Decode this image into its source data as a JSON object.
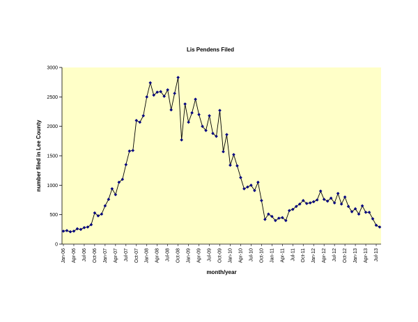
{
  "chart_data": {
    "type": "line",
    "title": "Lis Pendens Filed",
    "xlabel": "month/year",
    "ylabel": "number filed in Lee County",
    "ylim": [
      0,
      3000
    ],
    "yticks": [
      0,
      500,
      1000,
      1500,
      2000,
      2500,
      3000
    ],
    "grid": false,
    "legend": "none",
    "colors": {
      "plot_bg": "#ffffc8",
      "line": "#000000",
      "marker": "#000080"
    },
    "x_tick_labels": [
      "Jan-06",
      "Apr-06",
      "Jul-06",
      "Oct-06",
      "Jan-07",
      "Apr-07",
      "Jul-07",
      "Oct-07",
      "Jan-08",
      "Apr-08",
      "Jul-08",
      "Oct-08",
      "Jan-09",
      "Apr-09",
      "Jul-09",
      "Oct-09",
      "Jan-10",
      "Apr-10",
      "Jul-10",
      "Oct-10",
      "Jan-11",
      "Apr-11",
      "Jul-11",
      "Oct-11",
      "Jan-12",
      "Apr-12",
      "Jul-12",
      "Oct-12",
      "Jan-13",
      "Apr-13",
      "Jul-13"
    ],
    "x_start": "Jan-06",
    "series": [
      {
        "values": [
          220,
          230,
          210,
          220,
          260,
          250,
          280,
          290,
          330,
          530,
          480,
          510,
          650,
          760,
          940,
          840,
          1050,
          1100,
          1350,
          1580,
          1590,
          2100,
          2070,
          2180,
          2500,
          2740,
          2530,
          2580,
          2590,
          2510,
          2620,
          2280,
          2560,
          2830,
          1770,
          2380,
          2070,
          2230,
          2460,
          2200,
          2000,
          1930,
          2180,
          1880,
          1830,
          2270,
          1570,
          1860,
          1340,
          1520,
          1330,
          1130,
          940,
          970,
          1000,
          910,
          1050,
          740,
          420,
          510,
          470,
          400,
          440,
          450,
          400,
          570,
          590,
          640,
          680,
          740,
          690,
          700,
          720,
          750,
          900,
          760,
          730,
          780,
          700,
          860,
          680,
          800,
          640,
          550,
          600,
          510,
          650,
          540,
          540,
          430,
          320,
          290
        ]
      }
    ]
  }
}
